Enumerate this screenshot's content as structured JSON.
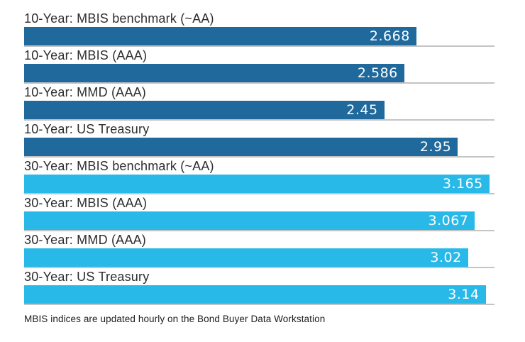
{
  "chart_data": {
    "type": "bar",
    "orientation": "horizontal",
    "title": "",
    "xlabel": "",
    "ylabel": "",
    "xlim": [
      0,
      3.2
    ],
    "grid": false,
    "legend_position": "none",
    "categories": [
      "10-Year: MBIS benchmark (~AA)",
      "10-Year: MBIS (AAA)",
      "10-Year: MMD (AAA)",
      "10-Year: US Treasury",
      "30-Year: MBIS benchmark (~AA)",
      "30-Year: MBIS (AAA)",
      "30-Year: MMD (AAA)",
      "30-Year: US Treasury"
    ],
    "values": [
      2.668,
      2.586,
      2.45,
      2.95,
      3.165,
      3.067,
      3.02,
      3.14
    ],
    "value_labels": [
      "2.668",
      "2.586",
      "2.45",
      "2.95",
      "3.165",
      "3.067",
      "3.02",
      "3.14"
    ],
    "groups": [
      "10-year",
      "10-year",
      "10-year",
      "10-year",
      "30-year",
      "30-year",
      "30-year",
      "30-year"
    ],
    "colors": {
      "10-year": "#1f699c",
      "30-year": "#29b9e8"
    },
    "separator_color": "#c4c4c4",
    "value_text_color": "#ffffff",
    "label_text_color": "#2d2d2d"
  },
  "footnote": "MBIS indices are updated hourly on the Bond Buyer Data Workstation"
}
